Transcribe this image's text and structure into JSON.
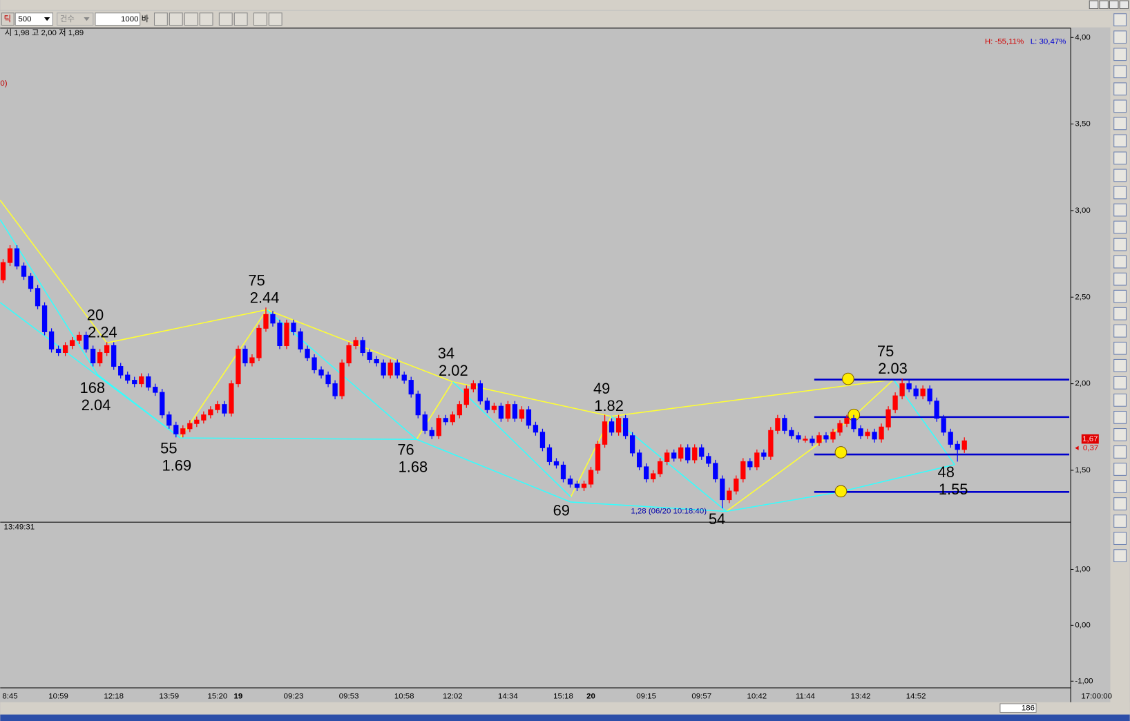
{
  "ui": {
    "toolbar": {
      "kind": "틱",
      "period": "500",
      "mode": "건수",
      "count": "1000",
      "unit": "바"
    },
    "info": "시 1,98 고 2,00 저 1,89",
    "left_marker": "0)",
    "high_pct": "H: -55,11%",
    "low_pct": "L: 30,47%",
    "current_price": "1,67",
    "change": "0,37",
    "low_note": "1,28 (06/20 10:18:40)",
    "cursor_time": "13:49:31",
    "end_time": "17:00:00",
    "bar_count": "186"
  },
  "chart_data": [
    {
      "type": "candlestick",
      "up_color": "#ff0000",
      "down_color": "#0000ff",
      "categories": [
        null,
        "8:45",
        null,
        null,
        null,
        null,
        null,
        null,
        "10:59",
        null,
        null,
        null,
        null,
        null,
        null,
        null,
        "12:18",
        null,
        null,
        null,
        null,
        null,
        null,
        null,
        "13:59",
        null,
        null,
        null,
        null,
        null,
        null,
        "15:20",
        null,
        null,
        "19",
        null,
        null,
        null,
        null,
        null,
        null,
        null,
        "09:23",
        null,
        null,
        null,
        null,
        null,
        null,
        null,
        "09:53",
        null,
        null,
        null,
        null,
        null,
        null,
        null,
        "10:58",
        null,
        null,
        null,
        null,
        null,
        null,
        "12:02",
        null,
        null,
        null,
        null,
        null,
        null,
        null,
        "14:34",
        null,
        null,
        null,
        null,
        null,
        null,
        null,
        "15:18",
        null,
        null,
        null,
        "20",
        null,
        null,
        null,
        null,
        null,
        null,
        null,
        "09:15",
        null,
        null,
        null,
        null,
        null,
        null,
        null,
        "09:57",
        null,
        null,
        null,
        null,
        null,
        null,
        null,
        "10:42",
        null,
        null,
        null,
        null,
        null,
        null,
        "11:44",
        null,
        null,
        null,
        null,
        null,
        null,
        null,
        "13:42",
        null,
        null,
        null,
        null,
        null,
        null,
        null,
        "14:52",
        null,
        null,
        null,
        null,
        null,
        null,
        null
      ],
      "open": [
        2.6,
        2.7,
        2.78,
        2.68,
        2.62,
        2.55,
        2.45,
        2.3,
        2.2,
        2.18,
        2.22,
        2.25,
        2.28,
        2.2,
        2.12,
        2.18,
        2.22,
        2.1,
        2.05,
        2.02,
        2.0,
        2.04,
        1.98,
        1.95,
        1.82,
        1.76,
        1.71,
        1.74,
        1.77,
        1.79,
        1.82,
        1.85,
        1.88,
        1.83,
        2.0,
        2.2,
        2.12,
        2.15,
        2.32,
        2.4,
        2.35,
        2.22,
        2.35,
        2.3,
        2.2,
        2.15,
        2.08,
        2.05,
        2.0,
        1.93,
        2.12,
        2.22,
        2.25,
        2.18,
        2.14,
        2.12,
        2.05,
        2.12,
        2.05,
        2.02,
        1.94,
        1.82,
        1.73,
        1.7,
        1.8,
        1.78,
        1.82,
        1.88,
        1.97,
        2.0,
        1.9,
        1.85,
        1.87,
        1.8,
        1.88,
        1.8,
        1.85,
        1.76,
        1.72,
        1.63,
        1.55,
        1.53,
        1.45,
        1.42,
        1.4,
        1.42,
        1.5,
        1.65,
        1.78,
        1.72,
        1.8,
        1.7,
        1.6,
        1.52,
        1.45,
        1.48,
        1.55,
        1.6,
        1.57,
        1.63,
        1.56,
        1.63,
        1.58,
        1.54,
        1.45,
        1.33,
        1.38,
        1.45,
        1.55,
        1.52,
        1.6,
        1.58,
        1.73,
        1.8,
        1.73,
        1.7,
        1.68,
        1.68,
        1.66,
        1.7,
        1.68,
        1.72,
        1.77,
        1.8,
        1.74,
        1.7,
        1.72,
        1.68,
        1.75,
        1.85,
        1.93,
        2.0,
        1.97,
        1.93,
        1.97,
        1.9,
        1.8,
        1.72,
        1.65,
        1.62
      ],
      "high": [
        2.72,
        2.8,
        2.8,
        2.7,
        2.64,
        2.57,
        2.47,
        2.32,
        2.22,
        2.24,
        2.27,
        2.3,
        2.3,
        2.22,
        2.2,
        2.24,
        2.24,
        2.12,
        2.07,
        2.04,
        2.06,
        2.06,
        2.0,
        1.97,
        1.84,
        1.78,
        1.76,
        1.79,
        1.81,
        1.84,
        1.87,
        1.9,
        1.9,
        2.02,
        2.22,
        2.22,
        2.17,
        2.34,
        2.44,
        2.42,
        2.37,
        2.37,
        2.37,
        2.32,
        2.22,
        2.17,
        2.1,
        2.07,
        2.02,
        2.14,
        2.24,
        2.27,
        2.27,
        2.2,
        2.16,
        2.14,
        2.14,
        2.14,
        2.07,
        2.04,
        1.96,
        1.84,
        1.75,
        1.82,
        1.82,
        1.84,
        1.9,
        1.99,
        2.02,
        2.02,
        1.92,
        1.89,
        1.89,
        1.9,
        1.9,
        1.87,
        1.87,
        1.78,
        1.74,
        1.65,
        1.57,
        1.55,
        1.47,
        1.44,
        1.44,
        1.52,
        1.67,
        1.82,
        1.8,
        1.82,
        1.82,
        1.72,
        1.62,
        1.54,
        1.5,
        1.57,
        1.62,
        1.62,
        1.65,
        1.65,
        1.65,
        1.65,
        1.6,
        1.56,
        1.47,
        1.4,
        1.47,
        1.57,
        1.57,
        1.62,
        1.62,
        1.75,
        1.82,
        1.82,
        1.75,
        1.72,
        1.7,
        1.7,
        1.72,
        1.72,
        1.74,
        1.79,
        1.82,
        1.82,
        1.76,
        1.74,
        1.74,
        1.77,
        1.87,
        1.95,
        2.03,
        2.02,
        1.99,
        1.99,
        1.99,
        1.92,
        1.82,
        1.74,
        1.67,
        1.69
      ],
      "low": [
        2.58,
        2.68,
        2.66,
        2.6,
        2.53,
        2.43,
        2.28,
        2.18,
        2.16,
        2.16,
        2.2,
        2.23,
        2.18,
        2.1,
        2.1,
        2.16,
        2.08,
        2.03,
        2.0,
        1.98,
        1.98,
        1.96,
        1.93,
        1.8,
        1.74,
        1.69,
        1.69,
        1.72,
        1.75,
        1.77,
        1.8,
        1.83,
        1.81,
        1.81,
        1.98,
        2.1,
        2.1,
        2.13,
        2.3,
        2.33,
        2.2,
        2.2,
        2.28,
        2.18,
        2.13,
        2.06,
        2.03,
        1.98,
        1.91,
        1.91,
        2.1,
        2.2,
        2.16,
        2.12,
        2.1,
        2.03,
        2.03,
        2.03,
        2.0,
        1.92,
        1.8,
        1.71,
        1.68,
        1.68,
        1.76,
        1.76,
        1.8,
        1.86,
        1.95,
        1.88,
        1.83,
        1.83,
        1.78,
        1.78,
        1.78,
        1.78,
        1.74,
        1.7,
        1.61,
        1.53,
        1.51,
        1.43,
        1.4,
        1.38,
        1.38,
        1.4,
        1.48,
        1.63,
        1.7,
        1.7,
        1.68,
        1.58,
        1.5,
        1.43,
        1.43,
        1.46,
        1.53,
        1.55,
        1.55,
        1.54,
        1.54,
        1.56,
        1.52,
        1.43,
        1.28,
        1.31,
        1.36,
        1.43,
        1.5,
        1.5,
        1.56,
        1.56,
        1.71,
        1.71,
        1.68,
        1.66,
        1.66,
        1.64,
        1.64,
        1.66,
        1.66,
        1.7,
        1.75,
        1.72,
        1.68,
        1.68,
        1.66,
        1.66,
        1.73,
        1.83,
        1.91,
        1.95,
        1.91,
        1.91,
        1.88,
        1.78,
        1.7,
        1.63,
        1.55,
        1.6
      ],
      "close": [
        2.7,
        2.78,
        2.68,
        2.62,
        2.55,
        2.45,
        2.3,
        2.2,
        2.18,
        2.22,
        2.25,
        2.28,
        2.2,
        2.12,
        2.18,
        2.22,
        2.1,
        2.05,
        2.02,
        2.0,
        2.04,
        1.98,
        1.95,
        1.82,
        1.76,
        1.71,
        1.74,
        1.77,
        1.79,
        1.82,
        1.85,
        1.88,
        1.83,
        2.0,
        2.2,
        2.12,
        2.15,
        2.32,
        2.4,
        2.35,
        2.22,
        2.35,
        2.3,
        2.2,
        2.15,
        2.08,
        2.05,
        2.0,
        1.93,
        2.12,
        2.22,
        2.25,
        2.18,
        2.14,
        2.12,
        2.05,
        2.12,
        2.05,
        2.02,
        1.94,
        1.82,
        1.73,
        1.7,
        1.8,
        1.78,
        1.82,
        1.88,
        1.97,
        2.0,
        1.9,
        1.85,
        1.87,
        1.8,
        1.88,
        1.8,
        1.85,
        1.76,
        1.72,
        1.63,
        1.55,
        1.53,
        1.45,
        1.42,
        1.4,
        1.42,
        1.5,
        1.65,
        1.78,
        1.72,
        1.8,
        1.7,
        1.6,
        1.52,
        1.45,
        1.48,
        1.55,
        1.6,
        1.57,
        1.63,
        1.56,
        1.63,
        1.58,
        1.54,
        1.45,
        1.33,
        1.38,
        1.45,
        1.55,
        1.52,
        1.6,
        1.58,
        1.73,
        1.8,
        1.73,
        1.7,
        1.68,
        1.68,
        1.66,
        1.7,
        1.68,
        1.72,
        1.77,
        1.8,
        1.74,
        1.7,
        1.72,
        1.68,
        1.75,
        1.85,
        1.93,
        2.0,
        1.97,
        1.93,
        1.97,
        1.9,
        1.8,
        1.72,
        1.65,
        1.62,
        1.67
      ],
      "ylim": [
        1.2,
        4.05
      ],
      "yticks": [
        {
          "value": 4,
          "label": "4,00"
        },
        {
          "value": 3.5,
          "label": "3,50"
        },
        {
          "value": 3,
          "label": "3,00"
        },
        {
          "value": 2.5,
          "label": "2,50"
        },
        {
          "value": 2,
          "label": "2,00"
        },
        {
          "value": 1.5,
          "label": "1,50"
        }
      ],
      "annotations": [
        "20",
        "2.24",
        "168",
        "2.04",
        "55",
        "1.69",
        "75",
        "2.44",
        "76",
        "1.68",
        "34",
        "2.02",
        "69",
        "49",
        "1.82",
        "54",
        "75",
        "2.03",
        "48",
        "1.55"
      ]
    },
    {
      "type": "line",
      "ylim": [
        -1.12,
        1.69
      ],
      "yticks": [
        {
          "value": 1,
          "label": "1,00"
        },
        {
          "value": 0,
          "label": "0,00"
        },
        {
          "value": -1,
          "label": "-1,00"
        }
      ]
    }
  ]
}
